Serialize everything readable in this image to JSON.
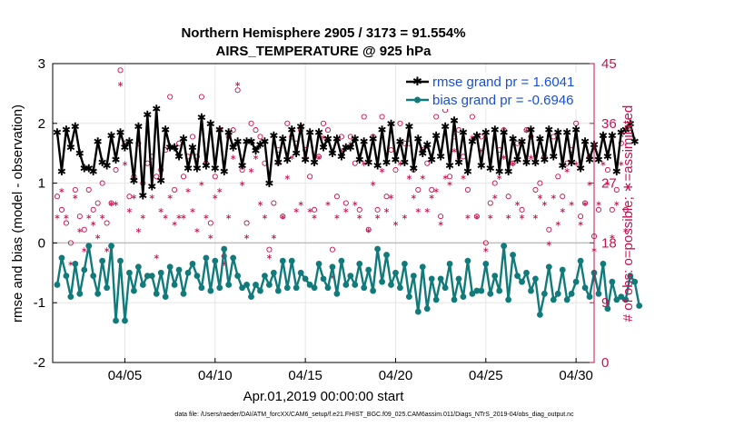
{
  "chart_data": {
    "type": "line",
    "title": "Northern Hemisphere 2905 / 3173 = 91.554%",
    "subtitle": "AIRS_TEMPERATURE @ 925 hPa",
    "xlabel": "Apr.01,2019 00:00:00 start",
    "ylabel": "rmse and bias (model - observation)",
    "ylabel_right": "# of obs: o=possible; ∗=assimilated",
    "footnote": "data file: /Users/raeder/DAI/ATM_forcXX/CAM6_setup/f.e21.FHIST_BGC.f09_025.CAM6assim.011/Diags_NTrS_2019-04/obs_diag_output.nc",
    "xlim": [
      1.0,
      31.0
    ],
    "ylim": [
      -2,
      3
    ],
    "ylim_right": [
      0,
      45
    ],
    "yticks": [
      "-2",
      "-1",
      "0",
      "1",
      "2",
      "3"
    ],
    "yticks_right": [
      "0",
      "9",
      "18",
      "27",
      "36",
      "45"
    ],
    "xticks": [
      {
        "x": 5,
        "label": "04/05"
      },
      {
        "x": 10,
        "label": "04/10"
      },
      {
        "x": 15,
        "label": "04/15"
      },
      {
        "x": 20,
        "label": "04/20"
      },
      {
        "x": 25,
        "label": "04/25"
      },
      {
        "x": 30,
        "label": "04/30"
      }
    ],
    "x_start": 1.25,
    "x_step": 0.25,
    "legend": [
      {
        "label": "rmse grand pr = 1.6041",
        "color": "#000000",
        "marker": "asterisk"
      },
      {
        "label": "bias grand pr = -0.6946",
        "color": "#117a7a",
        "marker": "dot"
      }
    ],
    "series": [
      {
        "name": "rmse",
        "color": "#000000",
        "values": [
          1.85,
          1.2,
          1.9,
          1.6,
          1.95,
          1.5,
          1.25,
          1.25,
          1.2,
          1.7,
          1.35,
          1.3,
          1.8,
          1.4,
          1.85,
          1.6,
          1.7,
          1.05,
          1.95,
          0.8,
          2.15,
          0.95,
          2.25,
          1.05,
          1.9,
          1.6,
          1.6,
          1.45,
          1.75,
          1.25,
          1.6,
          1.25,
          2.1,
          1.3,
          2.0,
          1.25,
          1.9,
          1.2,
          1.85,
          1.6,
          1.7,
          1.3,
          1.7,
          1.7,
          1.55,
          1.65,
          1.7,
          1.0,
          1.8,
          1.35,
          1.75,
          1.4,
          1.9,
          1.5,
          1.95,
          1.4,
          1.85,
          1.35,
          1.85,
          1.6,
          1.75,
          1.5,
          1.75,
          1.45,
          1.6,
          1.6,
          1.75,
          1.4,
          1.7,
          1.35,
          1.75,
          1.3,
          1.9,
          1.35,
          2.0,
          1.4,
          1.7,
          1.35,
          1.95,
          1.25,
          1.75,
          1.5,
          1.65,
          1.4,
          1.8,
          1.45,
          1.95,
          1.3,
          2.05,
          1.35,
          1.85,
          1.2,
          1.7,
          1.8,
          1.3,
          1.85,
          1.25,
          1.9,
          1.2,
          1.85,
          1.2,
          1.75,
          1.4,
          1.7,
          1.35,
          1.9,
          1.35,
          1.75,
          1.4,
          1.9,
          1.45,
          1.85,
          1.3,
          1.85,
          1.35,
          1.9,
          1.25,
          1.7,
          1.4,
          1.65,
          1.4,
          1.8,
          1.45,
          1.8,
          1.2,
          1.85,
          1.9,
          2.0,
          1.7
        ],
        "marker": "asterisk"
      },
      {
        "name": "bias",
        "color": "#117a7a",
        "values": [
          -0.7,
          -0.25,
          -0.55,
          -0.9,
          -0.35,
          -0.85,
          -0.45,
          -0.05,
          -0.55,
          -0.85,
          -0.3,
          -0.75,
          -0.05,
          -1.3,
          -0.3,
          -1.3,
          -0.5,
          -0.8,
          -0.4,
          -0.7,
          -0.55,
          -0.55,
          -0.85,
          -0.5,
          -0.9,
          -0.4,
          -0.7,
          -0.45,
          -0.85,
          -0.5,
          -0.35,
          -0.55,
          -0.75,
          -0.25,
          -0.8,
          -0.3,
          -0.75,
          -0.1,
          -0.7,
          -0.25,
          -0.55,
          -0.75,
          -0.7,
          -0.9,
          -0.7,
          -0.8,
          -0.55,
          -0.7,
          -0.5,
          -0.8,
          -0.3,
          -0.75,
          -0.3,
          -0.75,
          -0.5,
          -0.6,
          -0.7,
          -0.75,
          -0.35,
          -0.6,
          -0.75,
          -0.4,
          -0.85,
          -0.3,
          -0.7,
          -0.55,
          -0.7,
          -0.35,
          -0.75,
          -0.45,
          -0.8,
          -0.1,
          -0.65,
          -0.2,
          -0.7,
          -0.5,
          -0.75,
          -0.35,
          -0.9,
          -0.55,
          -1.15,
          -0.4,
          -1.1,
          -0.6,
          -0.95,
          -0.6,
          -0.75,
          -0.35,
          -0.95,
          -0.6,
          -0.9,
          -0.3,
          -0.85,
          -0.8,
          -0.8,
          -0.35,
          -0.85,
          -0.55,
          -0.8,
          -0.05,
          -0.95,
          -0.2,
          -0.55,
          -0.65,
          -0.5,
          -0.8,
          -0.6,
          -1.2,
          -0.85,
          -0.4,
          -0.95,
          -0.85,
          -0.45,
          -0.95,
          -0.85,
          -0.65,
          -0.3,
          -0.75,
          -0.9,
          -0.5,
          -0.85,
          -0.35,
          -1.1,
          -0.65,
          -0.95,
          -0.9,
          -0.95,
          -0.55,
          -0.65,
          -1.05
        ],
        "marker": "dot"
      },
      {
        "name": "# possible obs (right axis)",
        "color": "#c8104f",
        "axis": "right",
        "marker": "circle",
        "values": [
          25,
          23,
          21,
          18,
          26,
          22,
          20,
          26,
          23,
          24,
          27,
          21,
          24,
          29,
          44,
          33,
          25,
          28,
          33,
          27,
          30,
          31,
          28,
          29,
          32,
          40,
          26,
          33,
          28,
          31,
          34,
          31,
          40,
          30,
          21,
          28,
          35,
          16,
          34,
          35,
          41,
          29,
          21,
          36,
          35,
          34,
          30,
          17,
          24,
          32,
          22,
          36,
          34,
          33,
          35,
          32,
          28,
          23,
          31,
          36,
          35,
          17,
          25,
          34,
          24,
          34,
          30,
          23,
          37,
          20,
          34,
          23,
          37,
          25,
          32,
          29,
          36,
          33,
          33,
          29,
          26,
          32,
          30,
          26,
          37,
          22,
          38,
          28,
          34,
          35,
          31,
          26,
          37,
          22,
          34,
          18,
          24,
          27,
          32,
          35,
          25,
          30,
          33,
          23,
          35,
          34,
          26,
          27,
          31,
          20,
          34,
          28,
          25,
          30,
          32,
          36,
          22,
          24,
          31,
          19,
          23,
          34,
          29,
          23,
          26,
          33,
          23
        ],
        "possible_note": "approximate"
      },
      {
        "name": "# assimilated obs (right axis)",
        "color": "#c8104f",
        "axis": "right",
        "marker": "asterisk",
        "values": [
          22,
          26,
          22,
          15,
          25,
          20,
          17,
          22,
          21,
          19,
          22,
          17,
          24,
          24,
          42,
          30,
          23,
          25,
          20,
          22,
          13,
          25,
          16,
          23,
          22,
          25,
          21,
          22,
          22,
          26,
          23,
          20,
          27,
          22,
          19,
          25,
          26,
          15,
          22,
          31,
          42,
          27,
          19,
          29,
          31,
          24,
          22,
          16,
          19,
          30,
          22,
          28,
          31,
          23,
          24,
          31,
          23,
          22,
          31,
          34,
          24,
          13,
          22,
          32,
          23,
          33,
          24,
          22,
          30,
          20,
          27,
          22,
          29,
          23,
          25,
          21,
          30,
          22,
          28,
          25,
          23,
          28,
          23,
          25,
          26,
          21,
          28,
          27,
          32,
          31,
          28,
          22,
          34,
          22,
          32,
          17,
          22,
          25,
          28,
          31,
          22,
          30,
          24,
          22,
          35,
          31,
          22,
          25,
          24,
          18,
          25,
          21,
          23,
          29,
          24,
          30,
          21,
          24,
          27,
          17,
          24,
          30,
          27,
          19,
          24,
          30,
          20
        ]
      }
    ]
  }
}
